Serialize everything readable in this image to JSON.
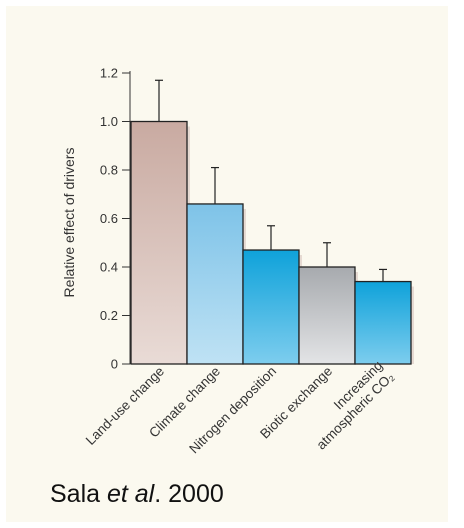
{
  "chart_data": {
    "type": "bar",
    "title": "",
    "xlabel": "",
    "ylabel": "Relative effect of drivers",
    "ylim": [
      0,
      1.2
    ],
    "yticks": [
      "0",
      "0.2",
      "0.4",
      "0.6",
      "0.8",
      "1.0",
      "1.2"
    ],
    "categories": [
      "Land-use change",
      "Climate change",
      "Nitrogen deposition",
      "Biotic exchange",
      "Increasing atmospheric CO₂"
    ],
    "category_lines": [
      [
        "Land-use change"
      ],
      [
        "Climate change"
      ],
      [
        "Nitrogen deposition"
      ],
      [
        "Biotic exchange"
      ],
      [
        "Increasing",
        "atmospheric CO₂"
      ]
    ],
    "values": [
      1.0,
      0.66,
      0.47,
      0.4,
      0.34
    ],
    "error_upper": [
      1.17,
      0.81,
      0.57,
      0.5,
      0.39
    ],
    "grid": false,
    "legend": "none",
    "colors": {
      "bars": [
        [
          "#c9aaa1",
          "#e9dbd6"
        ],
        [
          "#7ec3e8",
          "#bfe2f4"
        ],
        [
          "#0fa2da",
          "#7dcdee"
        ],
        [
          "#a7aaae",
          "#e3e4e6"
        ],
        [
          "#0fa2da",
          "#7dcdee"
        ]
      ],
      "background": "#fbf9ef",
      "shadow": "#d6c1ba",
      "stroke": "#222222"
    }
  },
  "citation": {
    "author": "Sala ",
    "etal": "et al",
    "rest": ". 2000"
  }
}
